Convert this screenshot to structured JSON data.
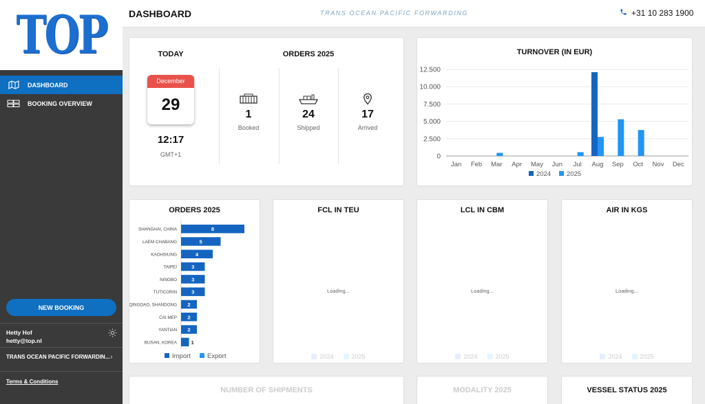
{
  "sidebar": {
    "logo": "TOP",
    "nav": [
      {
        "label": "DASHBOARD",
        "icon": "map-icon",
        "active": true
      },
      {
        "label": "BOOKING OVERVIEW",
        "icon": "containers-icon",
        "active": false
      }
    ],
    "new_booking": "NEW BOOKING",
    "user_name": "Hetty Hof",
    "user_email": "hetty@top.nl",
    "company": "TRANS OCEAN PACIFIC FORWARDIN...",
    "terms": "Terms & Conditions"
  },
  "header": {
    "title": "DASHBOARD",
    "slogan": "TRANS OCEAN PACIFIC FORWARDING",
    "phone": "+31 10 283 1900"
  },
  "today": {
    "title": "TODAY",
    "month": "December",
    "day": "29",
    "time": "12:17",
    "tz": "GMT+1"
  },
  "orders_summary": {
    "title": "ORDERS 2025",
    "stats": [
      {
        "value": "1",
        "label": "Booked",
        "icon": "container-icon"
      },
      {
        "value": "24",
        "label": "Shipped",
        "icon": "ship-icon"
      },
      {
        "value": "17",
        "label": "Arrived",
        "icon": "location-pin-icon"
      }
    ]
  },
  "colors": {
    "import": "#1565c0",
    "export": "#2196f3",
    "accent": "#0f6fc0"
  },
  "turnover": {
    "title": "TURNOVER (IN EUR)",
    "chart_data": {
      "type": "bar",
      "categories": [
        "Jan",
        "Feb",
        "Mar",
        "Apr",
        "May",
        "Jun",
        "Jul",
        "Aug",
        "Sep",
        "Oct",
        "Nov",
        "Dec"
      ],
      "series": [
        {
          "name": "2024",
          "values": [
            0,
            0,
            0,
            0,
            0,
            0,
            0,
            12100,
            0,
            0,
            0,
            0
          ]
        },
        {
          "name": "2025",
          "values": [
            0,
            0,
            450,
            0,
            0,
            0,
            550,
            2750,
            5300,
            3750,
            0,
            0
          ]
        }
      ],
      "y_ticks": [
        "0",
        "2.500",
        "5.000",
        "7.500",
        "10.000",
        "12.500"
      ],
      "ylim": [
        0,
        12500
      ],
      "legend": "bottom"
    }
  },
  "orders_ports": {
    "title": "ORDERS 2025",
    "chart_data": {
      "type": "bar",
      "orientation": "horizontal",
      "categories": [
        "SHANGHAI, CHINA",
        "LAEM CHABANG",
        "KAOHSIUNG",
        "TAIPEI",
        "NINGBO",
        "TUTICORIN",
        "QINGDAO, SHANDONG",
        "CAI MEP",
        "YANTIAN",
        "BUSAN, KOREA"
      ],
      "series": [
        {
          "name": "Import",
          "values": [
            8,
            5,
            4,
            3,
            3,
            3,
            2,
            2,
            2,
            1
          ]
        },
        {
          "name": "Export",
          "values": [
            0,
            0,
            0,
            0,
            0,
            0,
            0,
            0,
            0,
            0
          ]
        }
      ],
      "legend": "bottom"
    }
  },
  "loading_cards": [
    {
      "title": "FCL IN TEU",
      "loading": "Loading...",
      "legend": [
        "2024",
        "2025"
      ]
    },
    {
      "title": "LCL IN CBM",
      "loading": "Loading...",
      "legend": [
        "2024",
        "2025"
      ]
    },
    {
      "title": "AIR IN KGS",
      "loading": "Loading...",
      "legend": [
        "2024",
        "2025"
      ]
    }
  ],
  "bottom_cards": [
    {
      "title": "NUMBER OF SHIPMENTS"
    },
    {
      "title": "MODALITY 2025"
    },
    {
      "title": "VESSEL STATUS 2025"
    }
  ]
}
